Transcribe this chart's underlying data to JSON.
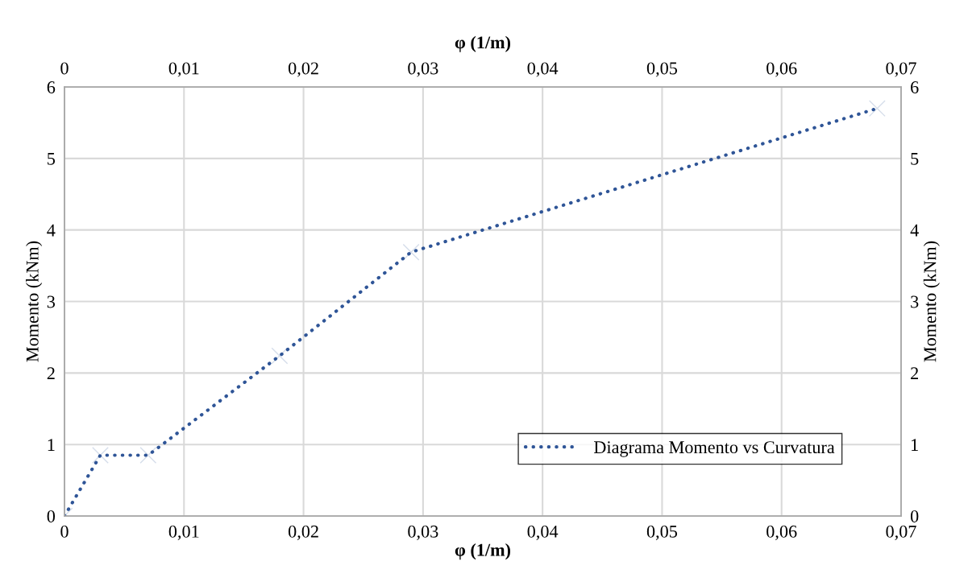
{
  "chart_data": {
    "type": "line",
    "xlabel": "φ (1/m)",
    "ylabel": "Momento (kNm)",
    "x2label": "φ (1/m)",
    "y2label": "Momento (kNm)",
    "series": [
      {
        "name": "Diagrama Momento vs Curvatura",
        "color": "#2f5597",
        "x": [
          0,
          0.003,
          0.007,
          0.018,
          0.029,
          0.068
        ],
        "values": [
          0,
          0.85,
          0.85,
          2.24,
          3.69,
          5.7
        ]
      }
    ],
    "xlim": [
      0,
      0.07
    ],
    "xticks": [
      0,
      {
        "value": 0.01,
        "label": "0,01"
      },
      {
        "value": 0.02,
        "label": "0,02"
      },
      {
        "value": 0.03,
        "label": "0,03"
      },
      {
        "value": 0.04,
        "label": "0,04"
      },
      {
        "value": 0.05,
        "label": "0,05"
      },
      {
        "value": 0.06,
        "label": "0,06"
      },
      {
        "value": 0.07,
        "label": "0,07"
      }
    ],
    "x2lim": [
      0,
      0.07
    ],
    "x2ticks": [
      0,
      {
        "value": 0.01,
        "label": "0,01"
      },
      {
        "value": 0.02,
        "label": "0,02"
      },
      {
        "value": 0.03,
        "label": "0,03"
      },
      {
        "value": 0.04,
        "label": "0,04"
      },
      {
        "value": 0.05,
        "label": "0,05"
      },
      {
        "value": 0.06,
        "label": "0,06"
      },
      {
        "value": 0.07,
        "label": "0,07"
      }
    ],
    "ylim": [
      0,
      6
    ],
    "yticks": [
      0,
      1,
      2,
      3,
      4,
      5,
      6
    ],
    "y2lim": [
      0,
      6
    ],
    "y2ticks": [
      0,
      1,
      2,
      3,
      4,
      5,
      6
    ],
    "grid": true,
    "legend": "bottom right",
    "marker": "cross",
    "line_style": "dotted"
  }
}
